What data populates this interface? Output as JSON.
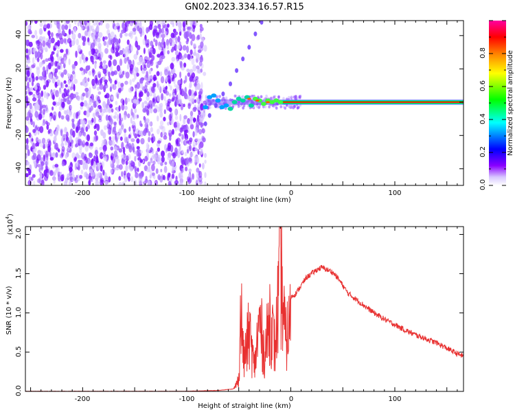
{
  "title": "GN02.2023.334.16.57.R15",
  "chart_data": [
    {
      "type": "heatmap",
      "xlabel": "Height of straight line (km)",
      "ylabel": "Frequency (Hz)",
      "xlim": [
        -255,
        166
      ],
      "ylim": [
        -50,
        49
      ],
      "xticks": [
        "-200",
        "-100",
        "0",
        "100"
      ],
      "yticks": [
        "40",
        "20",
        "0",
        "-20",
        "-40"
      ],
      "colorbar": {
        "label": "Normalized spectral amplitude",
        "range": [
          0.0,
          1.0
        ],
        "ticks": [
          "0.0",
          "0.2",
          "0.4",
          "0.6",
          "0.8"
        ],
        "colors": [
          "#ffffff",
          "#8a00ff",
          "#0000ff",
          "#00ffff",
          "#00ff00",
          "#ffff00",
          "#ff8000",
          "#ff0000",
          "#ff00a0"
        ]
      },
      "regions": [
        {
          "desc": "broadband noise",
          "x_range": [
            -255,
            -82
          ],
          "freq_range": [
            -50,
            49
          ],
          "amplitude": 0.05
        },
        {
          "desc": "transition",
          "x_range": [
            -82,
            10
          ],
          "freq_range": [
            -10,
            8
          ],
          "amplitude": 0.25
        },
        {
          "desc": "narrow band at 0 Hz",
          "x_range": [
            -60,
            166
          ],
          "freq_range": [
            -1,
            1
          ],
          "amplitude": 0.85
        }
      ]
    },
    {
      "type": "line",
      "xlabel": "Height of straight line (km)",
      "ylabel": "SNR (10 * v/v)",
      "yscale_label": "(x10",
      "yscale_exp": "4",
      "xlim": [
        -255,
        166
      ],
      "ylim": [
        0.0,
        2.1
      ],
      "xticks": [
        "-200",
        "-100",
        "0",
        "100"
      ],
      "yticks": [
        "0.0",
        "0.5",
        "1.0",
        "1.5",
        "2.0"
      ],
      "color": "#e83030",
      "series": [
        {
          "x": [
            -255,
            -200,
            -100,
            -70,
            -55,
            -50,
            -48,
            -45,
            -40,
            -35,
            -30,
            -25,
            -20,
            -15,
            -10,
            -5,
            0,
            5,
            10,
            15,
            20,
            25,
            30,
            35,
            40,
            45,
            50,
            55,
            60,
            70,
            80,
            90,
            100,
            110,
            120,
            130,
            140,
            150,
            160,
            166
          ],
          "y": [
            0.0,
            0.0,
            0.0,
            0.01,
            0.03,
            0.2,
            1.4,
            0.5,
            1.0,
            0.4,
            1.2,
            0.6,
            1.3,
            0.7,
            2.1,
            0.85,
            1.2,
            1.25,
            1.35,
            1.45,
            1.5,
            1.55,
            1.58,
            1.55,
            1.52,
            1.45,
            1.35,
            1.25,
            1.2,
            1.1,
            1.0,
            0.92,
            0.85,
            0.78,
            0.72,
            0.67,
            0.62,
            0.55,
            0.48,
            0.45
          ]
        }
      ]
    }
  ]
}
